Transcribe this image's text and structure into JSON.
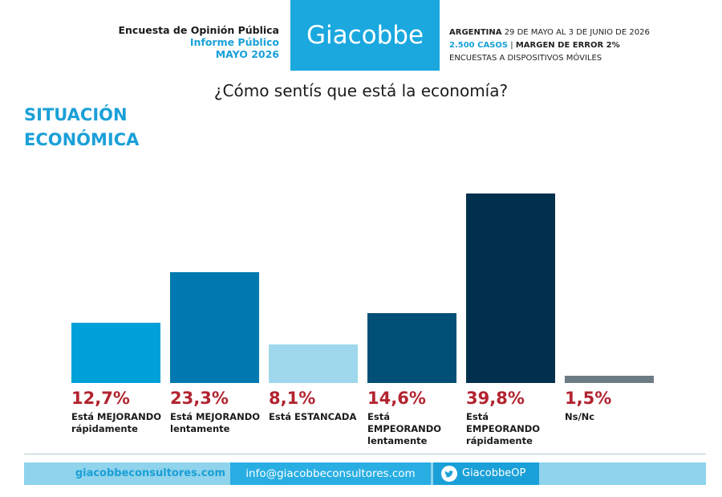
{
  "header": {
    "left": [
      "Encuesta de Opinión Pública",
      "Informe Público",
      "MAYO 2026"
    ],
    "brand": "Giacobbe",
    "right": {
      "line1": [
        "ARGENTINA",
        "29 DE MAYO AL 3 DE JUNIO DE 2026"
      ],
      "line2": [
        "2.500 CASOS",
        "|",
        "MARGEN DE ERROR 2%"
      ],
      "line3": "ENCUESTAS A DISPOSITIVOS MÓVILES"
    }
  },
  "chart_data": {
    "type": "bar",
    "title": "¿Cómo sentís que está la economía?",
    "subtitle": "SITUACIÓN ECONÓMICA",
    "categories": [
      "Está MEJORANDO rápidamente",
      "Está MEJORANDO lentamente",
      "Está ESTANCADA",
      "Está EMPEORANDO lentamente",
      "Está EMPEORANDO rápidamente",
      "Ns/Nc"
    ],
    "values": [
      12.7,
      23.3,
      8.1,
      14.6,
      39.8,
      1.5
    ],
    "value_labels": [
      "12,7%",
      "23,3%",
      "8,1%",
      "14,6%",
      "39,8%",
      "1,5%"
    ],
    "colors": [
      "#00a0d8",
      "#0079b0",
      "#9fd8ec",
      "#004f76",
      "#00304d",
      "#6d7b84"
    ]
  },
  "footer": {
    "web": "giacobbeconsultores.com",
    "email": "info@giacobbeconsultores.com",
    "twitter": "GiacobbeOP"
  }
}
